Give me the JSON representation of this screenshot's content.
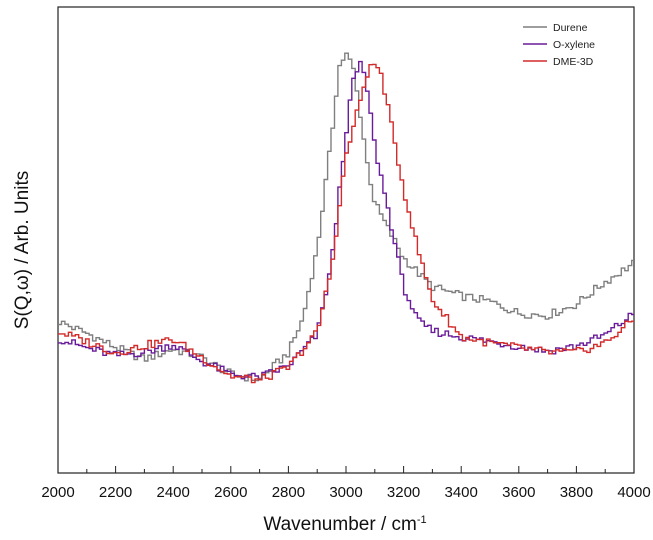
{
  "chart_data": {
    "type": "line",
    "title": "",
    "xlabel": "Wavenumber / cm",
    "xlabel_superscript": "-1",
    "ylabel": "S(Q,ω) / Arb. Units",
    "xlim": [
      2000,
      4000
    ],
    "ylim": [
      0,
      1
    ],
    "x_ticks": [
      "2000",
      "2200",
      "2400",
      "2600",
      "2800",
      "3000",
      "3200",
      "3400",
      "3600",
      "3800",
      "4000"
    ],
    "y_tick_labels_shown": false,
    "grid": false,
    "legend_position": "top-right",
    "step_style": true,
    "series": [
      {
        "name": "Durene",
        "color": "#7f7f7f",
        "points": [
          [
            2000,
            0.326
          ],
          [
            2100,
            0.3
          ],
          [
            2200,
            0.27
          ],
          [
            2300,
            0.244
          ],
          [
            2400,
            0.266
          ],
          [
            2500,
            0.248
          ],
          [
            2600,
            0.212
          ],
          [
            2700,
            0.2
          ],
          [
            2800,
            0.258
          ],
          [
            2850,
            0.33
          ],
          [
            2900,
            0.48
          ],
          [
            2950,
            0.72
          ],
          [
            2975,
            0.87
          ],
          [
            3000,
            0.9
          ],
          [
            3025,
            0.87
          ],
          [
            3050,
            0.77
          ],
          [
            3075,
            0.66
          ],
          [
            3100,
            0.58
          ],
          [
            3150,
            0.52
          ],
          [
            3200,
            0.462
          ],
          [
            3250,
            0.43
          ],
          [
            3300,
            0.4
          ],
          [
            3400,
            0.38
          ],
          [
            3500,
            0.368
          ],
          [
            3600,
            0.343
          ],
          [
            3700,
            0.338
          ],
          [
            3800,
            0.362
          ],
          [
            3900,
            0.41
          ],
          [
            4000,
            0.45
          ]
        ]
      },
      {
        "name": "O-xylene",
        "color": "#6a1b9a",
        "points": [
          [
            2000,
            0.289
          ],
          [
            2100,
            0.268
          ],
          [
            2200,
            0.252
          ],
          [
            2300,
            0.259
          ],
          [
            2400,
            0.276
          ],
          [
            2500,
            0.24
          ],
          [
            2600,
            0.212
          ],
          [
            2700,
            0.205
          ],
          [
            2800,
            0.23
          ],
          [
            2900,
            0.296
          ],
          [
            2950,
            0.45
          ],
          [
            3000,
            0.73
          ],
          [
            3025,
            0.84
          ],
          [
            3050,
            0.88
          ],
          [
            3075,
            0.82
          ],
          [
            3100,
            0.7
          ],
          [
            3150,
            0.555
          ],
          [
            3200,
            0.4
          ],
          [
            3250,
            0.325
          ],
          [
            3300,
            0.305
          ],
          [
            3400,
            0.292
          ],
          [
            3500,
            0.282
          ],
          [
            3600,
            0.272
          ],
          [
            3700,
            0.262
          ],
          [
            3800,
            0.272
          ],
          [
            3900,
            0.296
          ],
          [
            4000,
            0.342
          ]
        ]
      },
      {
        "name": "DME-3D",
        "color": "#d32a2a",
        "points": [
          [
            2000,
            0.304
          ],
          [
            2100,
            0.282
          ],
          [
            2200,
            0.258
          ],
          [
            2300,
            0.273
          ],
          [
            2400,
            0.287
          ],
          [
            2500,
            0.248
          ],
          [
            2600,
            0.208
          ],
          [
            2700,
            0.199
          ],
          [
            2800,
            0.226
          ],
          [
            2900,
            0.302
          ],
          [
            2950,
            0.44
          ],
          [
            3000,
            0.68
          ],
          [
            3050,
            0.8
          ],
          [
            3075,
            0.86
          ],
          [
            3100,
            0.88
          ],
          [
            3125,
            0.85
          ],
          [
            3150,
            0.77
          ],
          [
            3200,
            0.61
          ],
          [
            3250,
            0.48
          ],
          [
            3300,
            0.372
          ],
          [
            3400,
            0.292
          ],
          [
            3500,
            0.279
          ],
          [
            3600,
            0.269
          ],
          [
            3700,
            0.259
          ],
          [
            3800,
            0.259
          ],
          [
            3900,
            0.279
          ],
          [
            4000,
            0.33
          ]
        ]
      }
    ]
  }
}
